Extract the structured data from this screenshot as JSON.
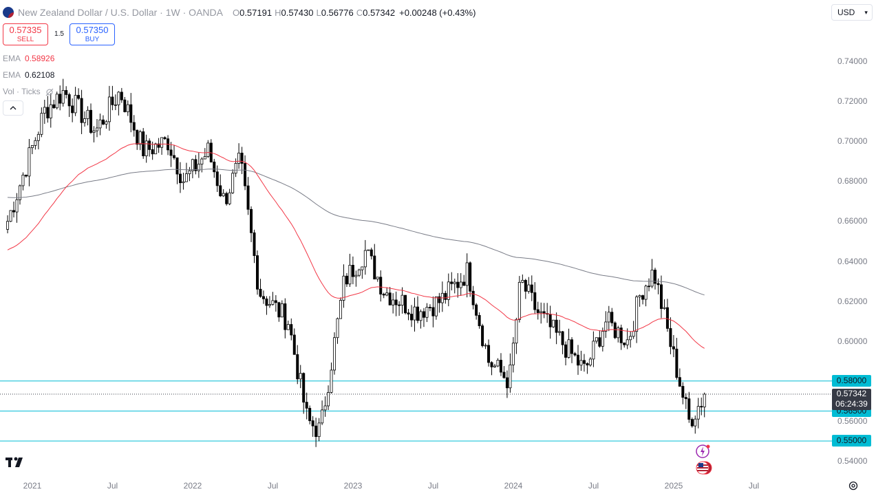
{
  "header": {
    "symbol": "New Zealand Dollar / U.S. Dollar · 1W · OANDA",
    "ohlc": [
      {
        "label": "O",
        "value": "0.57191"
      },
      {
        "label": "H",
        "value": "0.57430"
      },
      {
        "label": "L",
        "value": "0.56776"
      },
      {
        "label": "C",
        "value": "0.57342"
      }
    ],
    "change": "+0.00248 (+0.43%)"
  },
  "trade": {
    "sell_price": "0.57335",
    "sell_label": "SELL",
    "spread": "1.5",
    "buy_price": "0.57350",
    "buy_label": "BUY"
  },
  "indicators": [
    {
      "name": "EMA",
      "value": "0.58926",
      "color": "#f23645"
    },
    {
      "name": "EMA",
      "value": "0.62108",
      "color": "#131722"
    },
    {
      "name": "Vol · Ticks",
      "value": ""
    }
  ],
  "currency": "USD",
  "chart_data": {
    "type": "candlestick",
    "symbol": "NZDUSD",
    "interval": "1W",
    "y_axis_ticks": [
      "0.74000",
      "0.72000",
      "0.70000",
      "0.68000",
      "0.66000",
      "0.64000",
      "0.62000",
      "0.60000",
      "0.58000",
      "0.56000",
      "0.54000"
    ],
    "x_axis_ticks": [
      "2021",
      "Jul",
      "2022",
      "Jul",
      "2023",
      "Jul",
      "2024",
      "Jul",
      "2025",
      "Jul"
    ],
    "ylim": [
      0.537,
      0.753
    ],
    "horizontal_lines": [
      {
        "price": 0.58,
        "label": "0.58000",
        "color": "#00bcd4"
      },
      {
        "price": 0.565,
        "label": "0.56500",
        "color": "#00bcd4"
      },
      {
        "price": 0.55,
        "label": "0.55000",
        "color": "#00bcd4"
      }
    ],
    "last_price": {
      "value": "0.57342",
      "countdown": "06:24:39",
      "price": 0.57342
    },
    "ema_short_color": "#f23645",
    "ema_long_color": "#787b86",
    "key_prices": [
      {
        "time": 2020.85,
        "price": 0.66
      },
      {
        "time": 2021.08,
        "price": 0.715
      },
      {
        "time": 2021.2,
        "price": 0.725
      },
      {
        "time": 2021.4,
        "price": 0.705
      },
      {
        "time": 2021.55,
        "price": 0.725
      },
      {
        "time": 2021.7,
        "price": 0.695
      },
      {
        "time": 2021.85,
        "price": 0.7
      },
      {
        "time": 2021.95,
        "price": 0.68
      },
      {
        "time": 2022.1,
        "price": 0.695
      },
      {
        "time": 2022.2,
        "price": 0.67
      },
      {
        "time": 2022.3,
        "price": 0.69
      },
      {
        "time": 2022.42,
        "price": 0.625
      },
      {
        "time": 2022.6,
        "price": 0.61
      },
      {
        "time": 2022.72,
        "price": 0.56
      },
      {
        "time": 2022.8,
        "price": 0.555
      },
      {
        "time": 2022.95,
        "price": 0.63
      },
      {
        "time": 2023.08,
        "price": 0.645
      },
      {
        "time": 2023.2,
        "price": 0.625
      },
      {
        "time": 2023.4,
        "price": 0.615
      },
      {
        "time": 2023.55,
        "price": 0.62
      },
      {
        "time": 2023.72,
        "price": 0.635
      },
      {
        "time": 2023.85,
        "price": 0.59
      },
      {
        "time": 2023.98,
        "price": 0.58
      },
      {
        "time": 2024.05,
        "price": 0.63
      },
      {
        "time": 2024.15,
        "price": 0.615
      },
      {
        "time": 2024.3,
        "price": 0.6
      },
      {
        "time": 2024.45,
        "price": 0.585
      },
      {
        "time": 2024.58,
        "price": 0.61
      },
      {
        "time": 2024.72,
        "price": 0.6
      },
      {
        "time": 2024.8,
        "price": 0.625
      },
      {
        "time": 2024.88,
        "price": 0.635
      },
      {
        "time": 2024.98,
        "price": 0.6
      },
      {
        "time": 2025.1,
        "price": 0.56
      },
      {
        "time": 2025.2,
        "price": 0.573
      }
    ]
  }
}
